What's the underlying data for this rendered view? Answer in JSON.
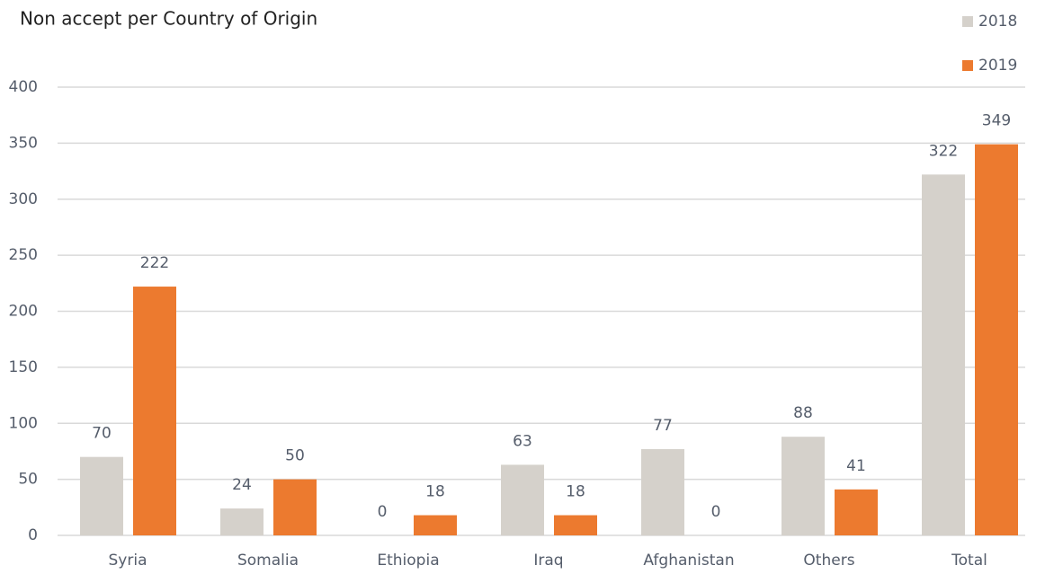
{
  "chart_data": {
    "type": "bar",
    "title": "Non accept per Country of Origin",
    "categories": [
      "Syria",
      "Somalia",
      "Ethiopia",
      "Iraq",
      "Afghanistan",
      "Others",
      "Total"
    ],
    "series": [
      {
        "name": "2018",
        "color": "#d5d1cb",
        "values": [
          70,
          24,
          0,
          63,
          77,
          88,
          322
        ]
      },
      {
        "name": "2019",
        "color": "#ec7a2f",
        "values": [
          222,
          50,
          18,
          18,
          0,
          41,
          349
        ]
      }
    ],
    "ylim": [
      0,
      400
    ],
    "yticks": [
      0,
      50,
      100,
      150,
      200,
      250,
      300,
      350,
      400
    ],
    "grid": true,
    "legend": "top-right"
  }
}
